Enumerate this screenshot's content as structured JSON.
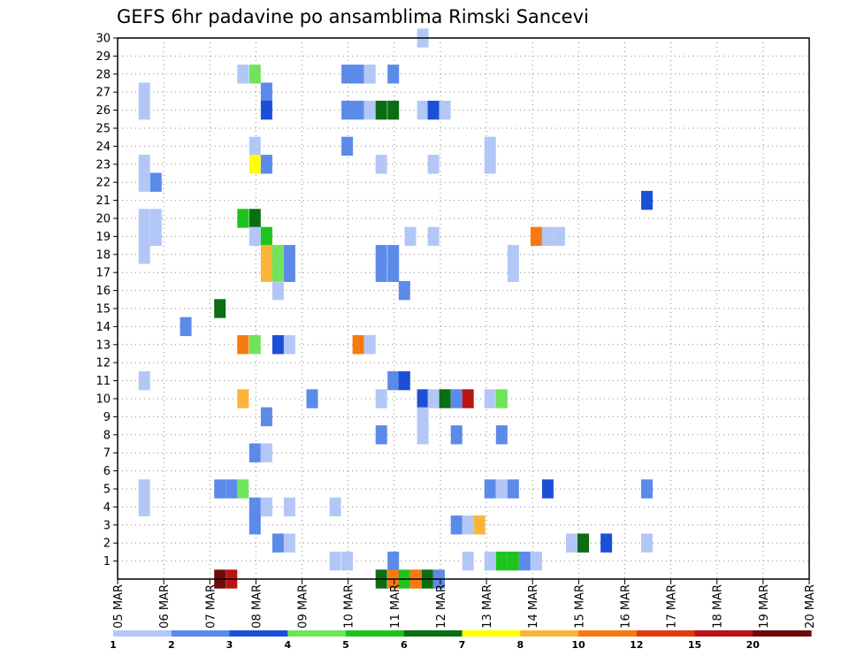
{
  "chart_data": {
    "type": "heatmap",
    "title": "GEFS 6hr padavine po ansamblima Rimski Sancevi",
    "y_range": [
      0,
      30
    ],
    "y_ticks": [
      1,
      2,
      3,
      4,
      5,
      6,
      7,
      8,
      9,
      10,
      11,
      12,
      13,
      14,
      15,
      16,
      17,
      18,
      19,
      20,
      21,
      22,
      23,
      24,
      25,
      26,
      27,
      28,
      29,
      30
    ],
    "x_start": "05 MAR",
    "x_steps_per_day": 4,
    "x_ticks": [
      "05 MAR",
      "06 MAR",
      "07 MAR",
      "08 MAR",
      "09 MAR",
      "10 MAR",
      "11 MAR",
      "12 MAR",
      "13 MAR",
      "14 MAR",
      "15 MAR",
      "16 MAR",
      "17 MAR",
      "18 MAR",
      "19 MAR",
      "20 MAR"
    ],
    "grid": true,
    "colorbar": {
      "levels": [
        "1",
        "2",
        "3",
        "4",
        "5",
        "6",
        "7",
        "8",
        "10",
        "12",
        "15",
        "20"
      ],
      "colors": [
        "#b3c7f7",
        "#5b8ae9",
        "#1c4fd8",
        "#6fe35a",
        "#1ec41e",
        "#0b6e12",
        "#ffff00",
        "#fbb43a",
        "#f67a10",
        "#e33a10",
        "#b81414",
        "#6f0a0a"
      ]
    },
    "cells": [
      {
        "day": 6.62,
        "member": 30,
        "color": "#b3c7f7"
      },
      {
        "day": 2.72,
        "member": 28,
        "color": "#b3c7f7"
      },
      {
        "day": 2.98,
        "member": 28,
        "color": "#6fe35a"
      },
      {
        "day": 4.98,
        "member": 28,
        "color": "#5b8ae9"
      },
      {
        "day": 5.22,
        "member": 28,
        "color": "#5b8ae9"
      },
      {
        "day": 5.47,
        "member": 28,
        "color": "#b3c7f7"
      },
      {
        "day": 5.98,
        "member": 28,
        "color": "#5b8ae9"
      },
      {
        "day": 0.58,
        "member": 27,
        "color": "#b3c7f7"
      },
      {
        "day": 3.23,
        "member": 27,
        "color": "#5b8ae9"
      },
      {
        "day": 0.58,
        "member": 26,
        "color": "#b3c7f7"
      },
      {
        "day": 3.23,
        "member": 26,
        "color": "#1c4fd8"
      },
      {
        "day": 4.98,
        "member": 26,
        "color": "#5b8ae9"
      },
      {
        "day": 5.22,
        "member": 26,
        "color": "#5b8ae9"
      },
      {
        "day": 5.47,
        "member": 26,
        "color": "#b3c7f7"
      },
      {
        "day": 5.72,
        "member": 26,
        "color": "#0b6e12"
      },
      {
        "day": 5.98,
        "member": 26,
        "color": "#0b6e12"
      },
      {
        "day": 6.62,
        "member": 26,
        "color": "#b3c7f7"
      },
      {
        "day": 6.85,
        "member": 26,
        "color": "#1c4fd8"
      },
      {
        "day": 7.1,
        "member": 26,
        "color": "#b3c7f7"
      },
      {
        "day": 2.98,
        "member": 24,
        "color": "#b3c7f7"
      },
      {
        "day": 4.98,
        "member": 24,
        "color": "#5b8ae9"
      },
      {
        "day": 0.58,
        "member": 23,
        "color": "#b3c7f7"
      },
      {
        "day": 2.98,
        "member": 23,
        "color": "#ffff00"
      },
      {
        "day": 3.23,
        "member": 23,
        "color": "#5b8ae9"
      },
      {
        "day": 5.72,
        "member": 23,
        "color": "#b3c7f7"
      },
      {
        "day": 6.85,
        "member": 23,
        "color": "#b3c7f7"
      },
      {
        "day": 8.08,
        "member": 23,
        "color": "#b3c7f7"
      },
      {
        "day": 8.08,
        "member": 24,
        "color": "#b3c7f7"
      },
      {
        "day": 0.58,
        "member": 22,
        "color": "#b3c7f7"
      },
      {
        "day": 0.83,
        "member": 22,
        "color": "#5b8ae9"
      },
      {
        "day": 11.48,
        "member": 21,
        "color": "#1c4fd8"
      },
      {
        "day": 0.58,
        "member": 20,
        "color": "#b3c7f7"
      },
      {
        "day": 0.83,
        "member": 20,
        "color": "#b3c7f7"
      },
      {
        "day": 2.72,
        "member": 20,
        "color": "#1ec41e"
      },
      {
        "day": 2.98,
        "member": 20,
        "color": "#0b6e12"
      },
      {
        "day": 0.58,
        "member": 19,
        "color": "#b3c7f7"
      },
      {
        "day": 0.83,
        "member": 19,
        "color": "#b3c7f7"
      },
      {
        "day": 2.98,
        "member": 19,
        "color": "#b3c7f7"
      },
      {
        "day": 3.23,
        "member": 19,
        "color": "#1ec41e"
      },
      {
        "day": 6.35,
        "member": 19,
        "color": "#b3c7f7"
      },
      {
        "day": 6.85,
        "member": 19,
        "color": "#b3c7f7"
      },
      {
        "day": 9.08,
        "member": 19,
        "color": "#f67a10"
      },
      {
        "day": 9.33,
        "member": 19,
        "color": "#b3c7f7"
      },
      {
        "day": 9.58,
        "member": 19,
        "color": "#b3c7f7"
      },
      {
        "day": 0.58,
        "member": 18,
        "color": "#b3c7f7"
      },
      {
        "day": 3.23,
        "member": 18,
        "color": "#fbb43a"
      },
      {
        "day": 3.48,
        "member": 18,
        "color": "#6fe35a"
      },
      {
        "day": 3.73,
        "member": 18,
        "color": "#5b8ae9"
      },
      {
        "day": 5.72,
        "member": 18,
        "color": "#5b8ae9"
      },
      {
        "day": 5.98,
        "member": 18,
        "color": "#5b8ae9"
      },
      {
        "day": 8.58,
        "member": 18,
        "color": "#b3c7f7"
      },
      {
        "day": 3.23,
        "member": 17,
        "color": "#fbb43a"
      },
      {
        "day": 3.48,
        "member": 17,
        "color": "#6fe35a"
      },
      {
        "day": 3.73,
        "member": 17,
        "color": "#5b8ae9"
      },
      {
        "day": 5.72,
        "member": 17,
        "color": "#5b8ae9"
      },
      {
        "day": 5.98,
        "member": 17,
        "color": "#5b8ae9"
      },
      {
        "day": 8.58,
        "member": 17,
        "color": "#b3c7f7"
      },
      {
        "day": 3.48,
        "member": 16,
        "color": "#b3c7f7"
      },
      {
        "day": 6.22,
        "member": 16,
        "color": "#5b8ae9"
      },
      {
        "day": 2.22,
        "member": 15,
        "color": "#0b6e12"
      },
      {
        "day": 1.48,
        "member": 14,
        "color": "#5b8ae9"
      },
      {
        "day": 2.72,
        "member": 13,
        "color": "#f67a10"
      },
      {
        "day": 2.98,
        "member": 13,
        "color": "#6fe35a"
      },
      {
        "day": 3.48,
        "member": 13,
        "color": "#1c4fd8"
      },
      {
        "day": 3.73,
        "member": 13,
        "color": "#b3c7f7"
      },
      {
        "day": 5.22,
        "member": 13,
        "color": "#f67a10"
      },
      {
        "day": 5.47,
        "member": 13,
        "color": "#b3c7f7"
      },
      {
        "day": 0.58,
        "member": 11,
        "color": "#b3c7f7"
      },
      {
        "day": 5.98,
        "member": 11,
        "color": "#5b8ae9"
      },
      {
        "day": 6.22,
        "member": 11,
        "color": "#1c4fd8"
      },
      {
        "day": 2.72,
        "member": 10,
        "color": "#fbb43a"
      },
      {
        "day": 4.22,
        "member": 10,
        "color": "#5b8ae9"
      },
      {
        "day": 5.72,
        "member": 10,
        "color": "#b3c7f7"
      },
      {
        "day": 6.62,
        "member": 10,
        "color": "#1c4fd8"
      },
      {
        "day": 6.85,
        "member": 10,
        "color": "#b3c7f7"
      },
      {
        "day": 7.1,
        "member": 10,
        "color": "#0b6e12"
      },
      {
        "day": 7.35,
        "member": 10,
        "color": "#5b8ae9"
      },
      {
        "day": 7.6,
        "member": 10,
        "color": "#b81414"
      },
      {
        "day": 8.08,
        "member": 10,
        "color": "#b3c7f7"
      },
      {
        "day": 8.33,
        "member": 10,
        "color": "#6fe35a"
      },
      {
        "day": 3.23,
        "member": 9,
        "color": "#5b8ae9"
      },
      {
        "day": 6.62,
        "member": 9,
        "color": "#b3c7f7"
      },
      {
        "day": 5.72,
        "member": 8,
        "color": "#5b8ae9"
      },
      {
        "day": 6.62,
        "member": 8,
        "color": "#b3c7f7"
      },
      {
        "day": 7.35,
        "member": 8,
        "color": "#5b8ae9"
      },
      {
        "day": 8.33,
        "member": 8,
        "color": "#5b8ae9"
      },
      {
        "day": 2.98,
        "member": 7,
        "color": "#5b8ae9"
      },
      {
        "day": 3.23,
        "member": 7,
        "color": "#b3c7f7"
      },
      {
        "day": 0.58,
        "member": 5,
        "color": "#b3c7f7"
      },
      {
        "day": 2.22,
        "member": 5,
        "color": "#5b8ae9"
      },
      {
        "day": 2.47,
        "member": 5,
        "color": "#5b8ae9"
      },
      {
        "day": 2.72,
        "member": 5,
        "color": "#6fe35a"
      },
      {
        "day": 8.08,
        "member": 5,
        "color": "#5b8ae9"
      },
      {
        "day": 8.33,
        "member": 5,
        "color": "#b3c7f7"
      },
      {
        "day": 8.58,
        "member": 5,
        "color": "#5b8ae9"
      },
      {
        "day": 9.33,
        "member": 5,
        "color": "#1c4fd8"
      },
      {
        "day": 11.48,
        "member": 5,
        "color": "#5b8ae9"
      },
      {
        "day": 0.58,
        "member": 4,
        "color": "#b3c7f7"
      },
      {
        "day": 2.98,
        "member": 4,
        "color": "#5b8ae9"
      },
      {
        "day": 3.23,
        "member": 4,
        "color": "#b3c7f7"
      },
      {
        "day": 3.73,
        "member": 4,
        "color": "#b3c7f7"
      },
      {
        "day": 4.72,
        "member": 4,
        "color": "#b3c7f7"
      },
      {
        "day": 2.98,
        "member": 3,
        "color": "#5b8ae9"
      },
      {
        "day": 7.35,
        "member": 3,
        "color": "#5b8ae9"
      },
      {
        "day": 7.6,
        "member": 3,
        "color": "#b3c7f7"
      },
      {
        "day": 7.85,
        "member": 3,
        "color": "#fbb43a"
      },
      {
        "day": 3.48,
        "member": 2,
        "color": "#5b8ae9"
      },
      {
        "day": 3.73,
        "member": 2,
        "color": "#b3c7f7"
      },
      {
        "day": 9.85,
        "member": 2,
        "color": "#b3c7f7"
      },
      {
        "day": 10.1,
        "member": 2,
        "color": "#0b6e12"
      },
      {
        "day": 10.6,
        "member": 2,
        "color": "#1c4fd8"
      },
      {
        "day": 11.48,
        "member": 2,
        "color": "#b3c7f7"
      },
      {
        "day": 4.72,
        "member": 1,
        "color": "#b3c7f7"
      },
      {
        "day": 4.98,
        "member": 1,
        "color": "#b3c7f7"
      },
      {
        "day": 5.98,
        "member": 1,
        "color": "#5b8ae9"
      },
      {
        "day": 7.6,
        "member": 1,
        "color": "#b3c7f7"
      },
      {
        "day": 8.08,
        "member": 1,
        "color": "#b3c7f7"
      },
      {
        "day": 8.33,
        "member": 1,
        "color": "#1ec41e"
      },
      {
        "day": 8.58,
        "member": 1,
        "color": "#1ec41e"
      },
      {
        "day": 8.83,
        "member": 1,
        "color": "#5b8ae9"
      },
      {
        "day": 9.08,
        "member": 1,
        "color": "#b3c7f7"
      },
      {
        "day": 2.22,
        "member": 0,
        "color": "#6f0a0a"
      },
      {
        "day": 2.47,
        "member": 0,
        "color": "#b81414"
      },
      {
        "day": 5.72,
        "member": 0,
        "color": "#0b6e12"
      },
      {
        "day": 5.98,
        "member": 0,
        "color": "#f67a10"
      },
      {
        "day": 6.22,
        "member": 0,
        "color": "#1ec41e"
      },
      {
        "day": 6.47,
        "member": 0,
        "color": "#f67a10"
      },
      {
        "day": 6.72,
        "member": 0,
        "color": "#0b6e12"
      },
      {
        "day": 6.97,
        "member": 0,
        "color": "#5b8ae9"
      }
    ]
  }
}
